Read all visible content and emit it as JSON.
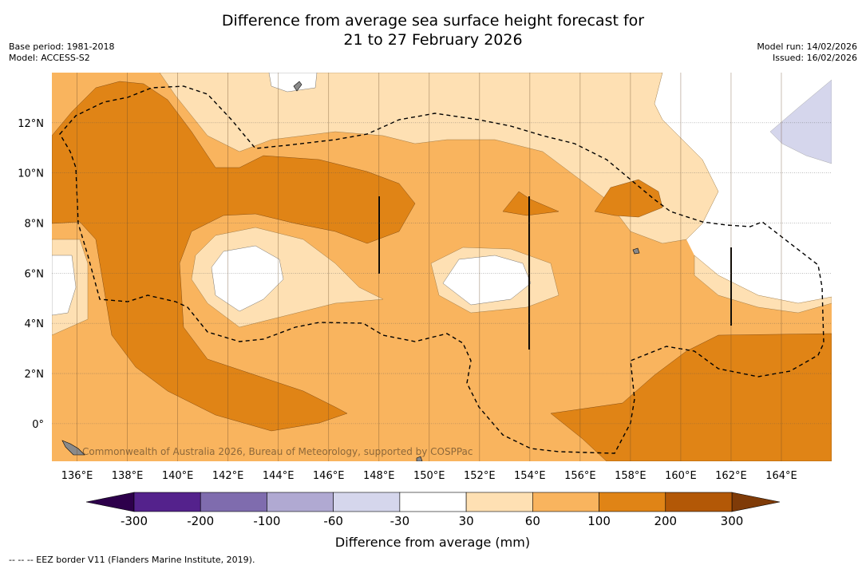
{
  "chart_data": {
    "type": "heatmap",
    "title_line1": "Difference from average sea surface height forecast for",
    "title_line2": "21 to 27 February 2026",
    "base_period": "Base period: 1981-2018",
    "model": "Model: ACCESS-S2",
    "model_run": "Model run: 14/02/2026",
    "issued": "Issued: 16/02/2026",
    "x_ticks": [
      "136°E",
      "138°E",
      "140°E",
      "142°E",
      "144°E",
      "146°E",
      "148°E",
      "150°E",
      "152°E",
      "154°E",
      "156°E",
      "158°E",
      "160°E",
      "162°E",
      "164°E"
    ],
    "x_values": [
      136,
      138,
      140,
      142,
      144,
      146,
      148,
      150,
      152,
      154,
      156,
      158,
      160,
      162,
      164
    ],
    "y_ticks": [
      "12°N",
      "10°N",
      "8°N",
      "6°N",
      "4°N",
      "2°N",
      "0°"
    ],
    "y_values": [
      12,
      10,
      8,
      6,
      4,
      2,
      0
    ],
    "xlim": [
      135,
      166
    ],
    "ylim": [
      -1.5,
      14
    ],
    "copyright": "Commonwealth of Australia 2026, Bureau of Meteorology, supported by COSPPac",
    "colorbar": {
      "label": "Difference from average (mm)",
      "tick_labels": [
        "-300",
        "-200",
        "-100",
        "-60",
        "-30",
        "30",
        "60",
        "100",
        "200",
        "300"
      ],
      "colors": [
        "#54228c",
        "#7f6cae",
        "#b0a9d2",
        "#d5d6ec",
        "#ffffff",
        "#fee0b3",
        "#f9b45e",
        "#e08416",
        "#b35806"
      ],
      "under_color": "#2d004b",
      "over_color": "#7f3b08"
    },
    "footnote": "--  --  -- EEZ border V11 (Flanders Marine Institute, 2019)."
  }
}
